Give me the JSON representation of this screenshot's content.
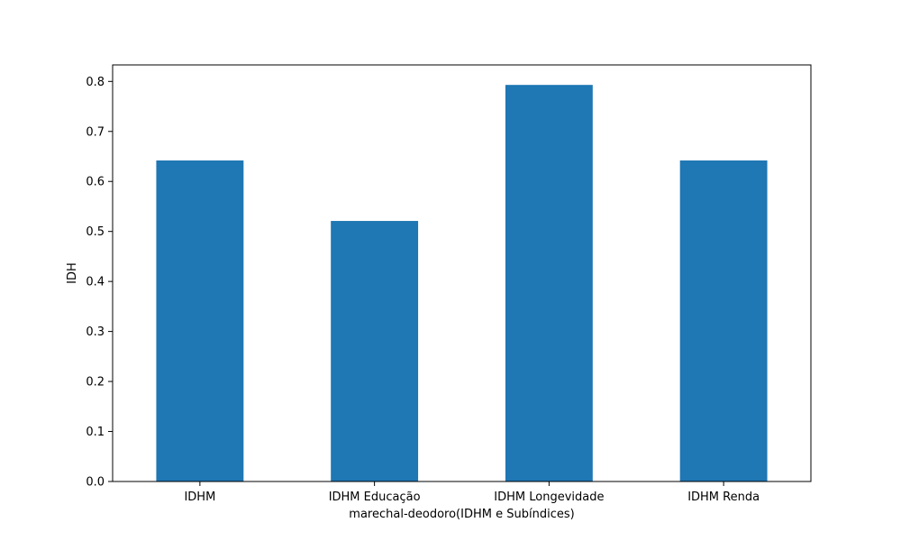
{
  "chart_data": {
    "type": "bar",
    "categories": [
      "IDHM",
      "IDHM Educação",
      "IDHM Longevidade",
      "IDHM Renda"
    ],
    "values": [
      0.642,
      0.521,
      0.793,
      0.642
    ],
    "xlabel": "marechal-deodoro(IDHM e Subíndices)",
    "ylabel": "IDH",
    "ylim": [
      0,
      0.833
    ],
    "yticks": [
      0.0,
      0.1,
      0.2,
      0.3,
      0.4,
      0.5,
      0.6,
      0.7,
      0.8
    ],
    "ytick_labels": [
      "0.0",
      "0.1",
      "0.2",
      "0.3",
      "0.4",
      "0.5",
      "0.6",
      "0.7",
      "0.8"
    ],
    "bar_color": "#1f77b4",
    "grid": false,
    "legend": "none"
  }
}
